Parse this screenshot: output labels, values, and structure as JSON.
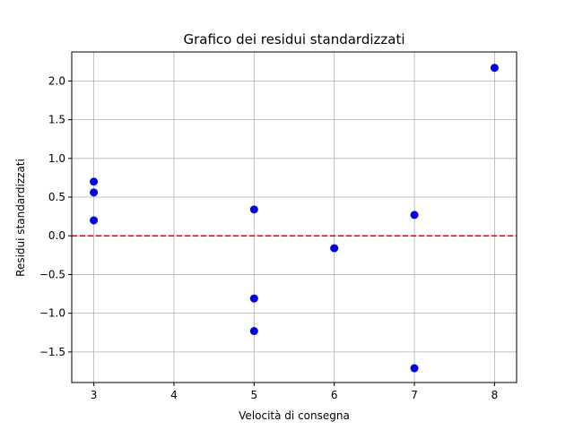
{
  "chart_data": {
    "type": "scatter",
    "title": "Grafico dei residui standardizzati",
    "xlabel": "Velocità di consegna",
    "ylabel": "Residui standardizzati",
    "xlim": [
      2.725,
      8.275
    ],
    "ylim": [
      -1.895,
      2.375
    ],
    "x_ticks": [
      3,
      4,
      5,
      6,
      7,
      8
    ],
    "y_ticks": [
      -1.5,
      -1.0,
      -0.5,
      0.0,
      0.5,
      1.0,
      1.5,
      2.0
    ],
    "grid": true,
    "reference_line": {
      "y": 0.0,
      "color": "#e00000",
      "style": "dashed"
    },
    "marker_color": "#0000ee",
    "points": [
      {
        "x": 3,
        "y": 0.7
      },
      {
        "x": 3,
        "y": 0.56
      },
      {
        "x": 3,
        "y": 0.2
      },
      {
        "x": 5,
        "y": 0.34
      },
      {
        "x": 5,
        "y": -0.81
      },
      {
        "x": 5,
        "y": -1.23
      },
      {
        "x": 6,
        "y": -0.16
      },
      {
        "x": 7,
        "y": 0.27
      },
      {
        "x": 7,
        "y": -1.71
      },
      {
        "x": 8,
        "y": 2.17
      }
    ]
  }
}
